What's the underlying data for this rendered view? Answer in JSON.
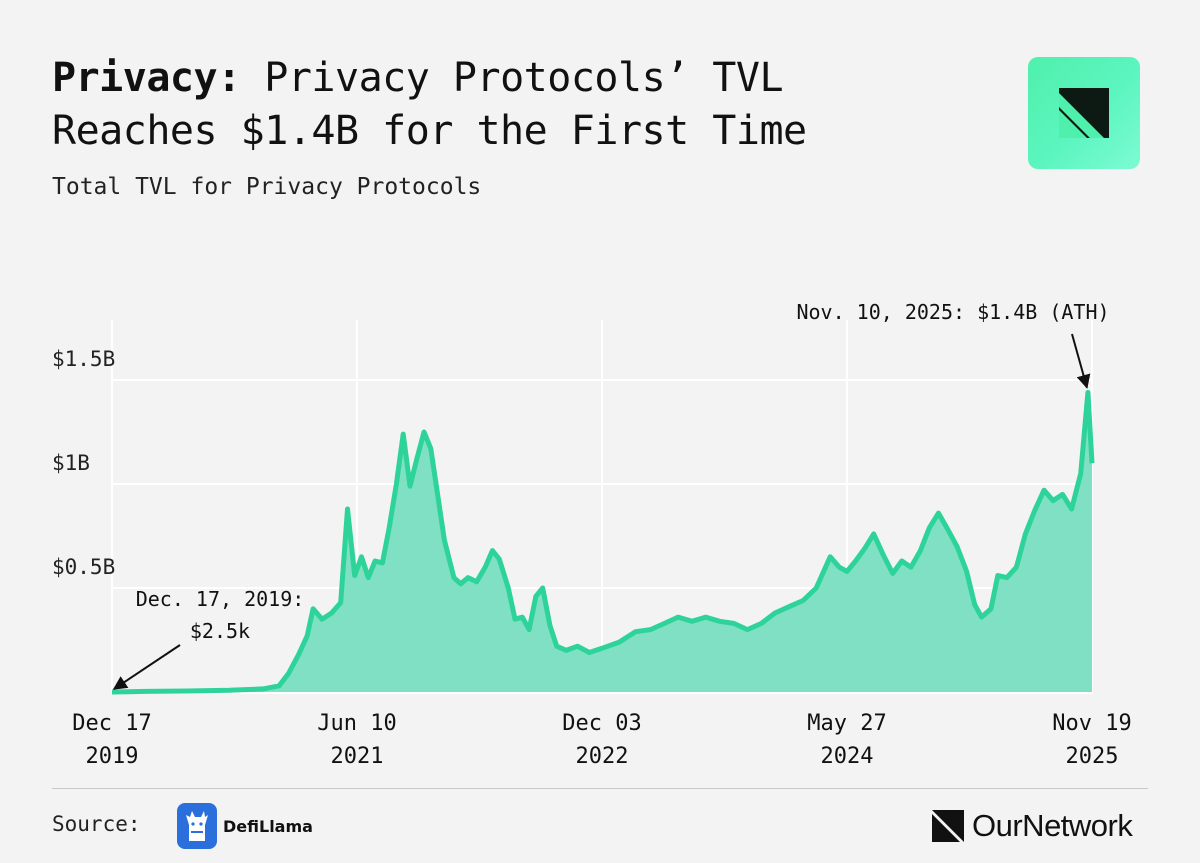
{
  "header": {
    "title_prefix": "Privacy:",
    "title_line1": "Privacy Protocols’ TVL",
    "title_line2": "Reaches $1.4B for the First Time",
    "subtitle": "Total TVL for Privacy Protocols"
  },
  "brand": {
    "accent_color": "#2ed39a",
    "fill_color": "#7fe0c4",
    "logo_icon": "ournetwork-logo-icon"
  },
  "footer": {
    "source_label": "Source:",
    "source_name": "DefiLlama",
    "source_icon": "defillama-llama-icon",
    "publisher": "OurNetwork"
  },
  "chart_data": {
    "type": "area",
    "title": "Total TVL for Privacy Protocols",
    "ylabel": "",
    "xlabel": "",
    "y_unit": "USD billions",
    "ylim": [
      0,
      1.5
    ],
    "x_range": [
      "2019-12-17",
      "2025-11-19"
    ],
    "grid": true,
    "y_ticks": [
      {
        "value": 0.5,
        "label": "$0.5B"
      },
      {
        "value": 1.0,
        "label": "$1B"
      },
      {
        "value": 1.5,
        "label": "$1.5B"
      }
    ],
    "x_ticks": [
      {
        "date": "2019-12-17",
        "line1": "Dec 17",
        "line2": "2019"
      },
      {
        "date": "2021-06-10",
        "line1": "Jun 10",
        "line2": "2021"
      },
      {
        "date": "2022-12-03",
        "line1": "Dec 03",
        "line2": "2022"
      },
      {
        "date": "2024-05-27",
        "line1": "May 27",
        "line2": "2024"
      },
      {
        "date": "2025-11-19",
        "line1": "Nov 19",
        "line2": "2025"
      }
    ],
    "series": [
      {
        "points": [
          [
            "2019-12-17",
            2.5e-06
          ],
          [
            "2020-03-01",
            0.003
          ],
          [
            "2020-06-01",
            0.005
          ],
          [
            "2020-09-01",
            0.008
          ],
          [
            "2020-11-15",
            0.015
          ],
          [
            "2020-12-20",
            0.03
          ],
          [
            "2021-01-10",
            0.09
          ],
          [
            "2021-02-01",
            0.18
          ],
          [
            "2021-02-20",
            0.27
          ],
          [
            "2021-03-05",
            0.4
          ],
          [
            "2021-03-25",
            0.35
          ],
          [
            "2021-04-15",
            0.38
          ],
          [
            "2021-05-05",
            0.43
          ],
          [
            "2021-05-20",
            0.88
          ],
          [
            "2021-06-05",
            0.56
          ],
          [
            "2021-06-20",
            0.65
          ],
          [
            "2021-07-05",
            0.55
          ],
          [
            "2021-07-20",
            0.63
          ],
          [
            "2021-08-05",
            0.62
          ],
          [
            "2021-08-20",
            0.79
          ],
          [
            "2021-09-05",
            1.0
          ],
          [
            "2021-09-20",
            1.24
          ],
          [
            "2021-10-05",
            0.99
          ],
          [
            "2021-10-20",
            1.12
          ],
          [
            "2021-11-05",
            1.25
          ],
          [
            "2021-11-20",
            1.17
          ],
          [
            "2021-12-05",
            0.95
          ],
          [
            "2021-12-20",
            0.73
          ],
          [
            "2022-01-10",
            0.55
          ],
          [
            "2022-01-25",
            0.52
          ],
          [
            "2022-02-10",
            0.55
          ],
          [
            "2022-03-01",
            0.53
          ],
          [
            "2022-03-20",
            0.6
          ],
          [
            "2022-04-05",
            0.68
          ],
          [
            "2022-04-20",
            0.64
          ],
          [
            "2022-05-10",
            0.5
          ],
          [
            "2022-05-25",
            0.35
          ],
          [
            "2022-06-10",
            0.36
          ],
          [
            "2022-06-25",
            0.3
          ],
          [
            "2022-07-10",
            0.46
          ],
          [
            "2022-07-25",
            0.5
          ],
          [
            "2022-08-10",
            0.32
          ],
          [
            "2022-08-25",
            0.22
          ],
          [
            "2022-09-15",
            0.2
          ],
          [
            "2022-10-10",
            0.22
          ],
          [
            "2022-11-05",
            0.19
          ],
          [
            "2022-12-03",
            0.21
          ],
          [
            "2023-01-10",
            0.24
          ],
          [
            "2023-02-15",
            0.29
          ],
          [
            "2023-03-20",
            0.3
          ],
          [
            "2023-04-20",
            0.33
          ],
          [
            "2023-05-20",
            0.36
          ],
          [
            "2023-06-20",
            0.34
          ],
          [
            "2023-07-20",
            0.36
          ],
          [
            "2023-08-20",
            0.34
          ],
          [
            "2023-09-20",
            0.33
          ],
          [
            "2023-10-20",
            0.3
          ],
          [
            "2023-11-20",
            0.33
          ],
          [
            "2023-12-20",
            0.38
          ],
          [
            "2024-01-20",
            0.41
          ],
          [
            "2024-02-20",
            0.44
          ],
          [
            "2024-03-20",
            0.5
          ],
          [
            "2024-04-20",
            0.65
          ],
          [
            "2024-05-10",
            0.6
          ],
          [
            "2024-05-27",
            0.58
          ],
          [
            "2024-06-15",
            0.63
          ],
          [
            "2024-07-05",
            0.69
          ],
          [
            "2024-07-25",
            0.76
          ],
          [
            "2024-08-15",
            0.66
          ],
          [
            "2024-09-05",
            0.57
          ],
          [
            "2024-09-25",
            0.63
          ],
          [
            "2024-10-15",
            0.6
          ],
          [
            "2024-11-05",
            0.68
          ],
          [
            "2024-11-25",
            0.79
          ],
          [
            "2024-12-15",
            0.86
          ],
          [
            "2025-01-05",
            0.78
          ],
          [
            "2025-01-25",
            0.7
          ],
          [
            "2025-02-15",
            0.58
          ],
          [
            "2025-03-05",
            0.42
          ],
          [
            "2025-03-20",
            0.36
          ],
          [
            "2025-04-10",
            0.4
          ],
          [
            "2025-04-25",
            0.56
          ],
          [
            "2025-05-15",
            0.55
          ],
          [
            "2025-06-05",
            0.6
          ],
          [
            "2025-06-25",
            0.76
          ],
          [
            "2025-07-15",
            0.87
          ],
          [
            "2025-08-05",
            0.97
          ],
          [
            "2025-08-25",
            0.92
          ],
          [
            "2025-09-15",
            0.95
          ],
          [
            "2025-10-05",
            0.88
          ],
          [
            "2025-10-25",
            1.05
          ],
          [
            "2025-11-10",
            1.44
          ],
          [
            "2025-11-19",
            1.1
          ]
        ]
      }
    ],
    "annotations": [
      {
        "id": "start",
        "date": "2019-12-17",
        "value": 2.5e-06,
        "lines": [
          "Dec. 17, 2019:",
          "$2.5k"
        ]
      },
      {
        "id": "ath",
        "date": "2025-11-10",
        "value": 1.44,
        "lines": [
          "Nov. 10, 2025: $1.4B (ATH)"
        ]
      }
    ]
  }
}
